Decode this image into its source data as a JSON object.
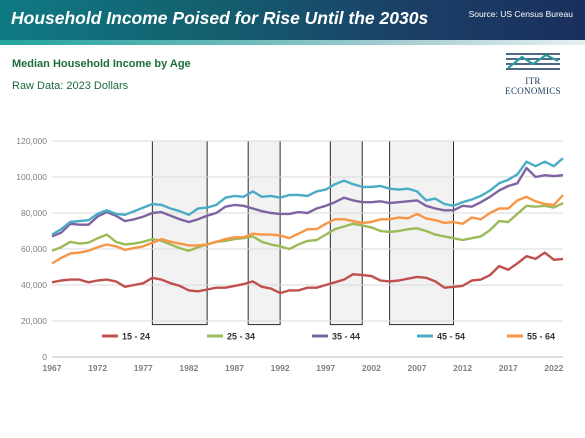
{
  "header": {
    "title": "Household Income Poised for Rise Until the 2030s",
    "source": "Source: US Census Bureau"
  },
  "subtitle": "Median Household Income by Age",
  "raw_data_note": "Raw Data: 2023 Dollars",
  "logo": {
    "text": "ITR ECONOMICS",
    "icon": "itr-logo-icon"
  },
  "colors": {
    "header_start": "#0f7a84",
    "header_end": "#1a2f5c",
    "accent_green": "#1e6b3c",
    "grid": "#d9d9d9",
    "recession_fill": "#f2f2f2"
  },
  "chart_data": {
    "type": "line",
    "xlabel": "",
    "ylabel": "",
    "xlim": [
      1967,
      2023
    ],
    "ylim": [
      0,
      120000
    ],
    "x_ticks": [
      "1967",
      "1972",
      "1977",
      "1982",
      "1987",
      "1992",
      "1997",
      "2002",
      "2007",
      "2012",
      "2017",
      "2022"
    ],
    "y_ticks": [
      "0",
      "20,000",
      "40,000",
      "60,000",
      "80,000",
      "100,000",
      "120,000"
    ],
    "grid": "horizontal",
    "legend_position": "bottom-inside",
    "shaded_periods": [
      [
        1978,
        1984
      ],
      [
        1988.5,
        1992
      ],
      [
        1997.5,
        2001
      ],
      [
        2004,
        2011
      ]
    ],
    "x": [
      1967,
      1968,
      1969,
      1970,
      1971,
      1972,
      1973,
      1974,
      1975,
      1976,
      1977,
      1978,
      1979,
      1980,
      1981,
      1982,
      1983,
      1984,
      1985,
      1986,
      1987,
      1988,
      1989,
      1990,
      1991,
      1992,
      1993,
      1994,
      1995,
      1996,
      1997,
      1998,
      1999,
      2000,
      2001,
      2002,
      2003,
      2004,
      2005,
      2006,
      2007,
      2008,
      2009,
      2010,
      2011,
      2012,
      2013,
      2014,
      2015,
      2016,
      2017,
      2018,
      2019,
      2020,
      2021,
      2022,
      2023
    ],
    "series": [
      {
        "name": "15 - 24",
        "color": "#c0504d",
        "values": [
          41500,
          42500,
          43000,
          43000,
          41500,
          42500,
          43000,
          42000,
          39000,
          40000,
          41000,
          44000,
          43000,
          41000,
          39500,
          37000,
          36500,
          37500,
          38500,
          38500,
          39500,
          40500,
          42000,
          39000,
          38000,
          35500,
          37000,
          37000,
          38500,
          38500,
          40000,
          41500,
          43000,
          46000,
          45500,
          45000,
          42500,
          42000,
          42500,
          43500,
          44500,
          44000,
          42000,
          38500,
          39000,
          39500,
          42500,
          43000,
          45500,
          50500,
          48500,
          52000,
          56000,
          54500,
          58000,
          54000,
          54500
        ]
      },
      {
        "name": "25 - 34",
        "color": "#9bbb59",
        "values": [
          59000,
          61000,
          64000,
          63000,
          63500,
          66000,
          68000,
          64000,
          62500,
          63000,
          64000,
          65500,
          64500,
          62500,
          60500,
          59000,
          61000,
          62500,
          64000,
          64500,
          65500,
          66000,
          67000,
          64000,
          62500,
          61500,
          60000,
          62500,
          64500,
          65000,
          68000,
          71000,
          72500,
          74000,
          73000,
          72000,
          70000,
          69500,
          70000,
          71000,
          71500,
          70000,
          68000,
          67000,
          66000,
          65000,
          66000,
          67000,
          70500,
          75500,
          75000,
          79500,
          84000,
          83500,
          84000,
          83000,
          85500
        ]
      },
      {
        "name": "35 - 44",
        "color": "#8064a2",
        "values": [
          67000,
          69000,
          74000,
          73500,
          73500,
          78000,
          80500,
          78500,
          75500,
          76500,
          78000,
          80000,
          80500,
          78500,
          76500,
          75000,
          76500,
          78500,
          80000,
          83500,
          84500,
          84000,
          82500,
          81000,
          80000,
          79500,
          79500,
          80500,
          80000,
          82500,
          84000,
          86000,
          88500,
          87000,
          86000,
          86000,
          86500,
          85500,
          86000,
          86500,
          87000,
          84000,
          82500,
          81500,
          81500,
          84000,
          83500,
          86000,
          89000,
          92500,
          95000,
          96500,
          105000,
          100000,
          101000,
          100500,
          101000
        ]
      },
      {
        "name": "45 - 54",
        "color": "#4bacc6",
        "values": [
          68000,
          71000,
          75000,
          75500,
          76000,
          79500,
          81500,
          79500,
          79000,
          81000,
          83000,
          85000,
          84500,
          82500,
          81000,
          79000,
          82500,
          83000,
          84500,
          88500,
          89500,
          89000,
          92000,
          89000,
          89500,
          88500,
          90000,
          90000,
          89500,
          92000,
          93000,
          96000,
          98000,
          96000,
          94500,
          94500,
          95000,
          93500,
          93000,
          93500,
          92000,
          87000,
          88000,
          85000,
          84000,
          86000,
          87500,
          89500,
          92500,
          96500,
          98500,
          101500,
          108500,
          106000,
          108500,
          106000,
          110500
        ]
      },
      {
        "name": "55 - 64",
        "color": "#f79646",
        "values": [
          52000,
          55000,
          57500,
          58000,
          59000,
          61000,
          62500,
          61500,
          59500,
          60500,
          61500,
          63500,
          65500,
          64000,
          63000,
          62000,
          62000,
          62500,
          64000,
          65500,
          66500,
          66500,
          68500,
          68000,
          68000,
          67500,
          66000,
          68500,
          71000,
          71000,
          74000,
          76500,
          76500,
          75500,
          74500,
          75000,
          76500,
          76500,
          77500,
          77000,
          79500,
          77000,
          76000,
          74500,
          75000,
          74000,
          77500,
          76500,
          80000,
          82500,
          82500,
          87000,
          89000,
          86500,
          85000,
          84500,
          90000
        ]
      }
    ]
  }
}
